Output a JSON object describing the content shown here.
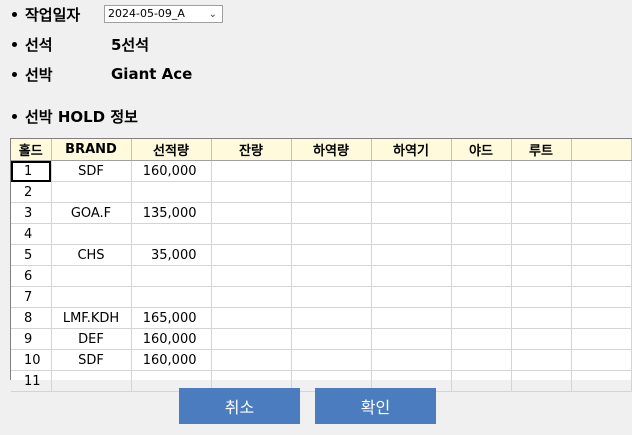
{
  "fields": {
    "work_date": {
      "label": "작업일자",
      "value": "2024-05-09_A"
    },
    "berth": {
      "label": "선석",
      "value": "5선석"
    },
    "vessel": {
      "label": "선박",
      "value": "Giant Ace"
    }
  },
  "section": {
    "title": "선박 HOLD 정보"
  },
  "grid": {
    "columns": [
      "홀드",
      "BRAND",
      "선적량",
      "잔량",
      "하역량",
      "하역기",
      "야드",
      "루트",
      ""
    ],
    "rows": [
      {
        "hold": "1",
        "brand": "SDF",
        "amount": "160,000"
      },
      {
        "hold": "2",
        "brand": "",
        "amount": ""
      },
      {
        "hold": "3",
        "brand": "GOA.F",
        "amount": "135,000"
      },
      {
        "hold": "4",
        "brand": "",
        "amount": ""
      },
      {
        "hold": "5",
        "brand": "CHS",
        "amount": "35,000"
      },
      {
        "hold": "6",
        "brand": "",
        "amount": ""
      },
      {
        "hold": "7",
        "brand": "",
        "amount": ""
      },
      {
        "hold": "8",
        "brand": "LMF.KDH",
        "amount": "165,000"
      },
      {
        "hold": "9",
        "brand": "DEF",
        "amount": "160,000"
      },
      {
        "hold": "10",
        "brand": "SDF",
        "amount": "160,000"
      },
      {
        "hold": "11",
        "brand": "",
        "amount": ""
      }
    ]
  },
  "buttons": {
    "cancel": "취소",
    "confirm": "확인"
  },
  "colors": {
    "button": "#4a7cbf",
    "header": "#fffadb"
  }
}
